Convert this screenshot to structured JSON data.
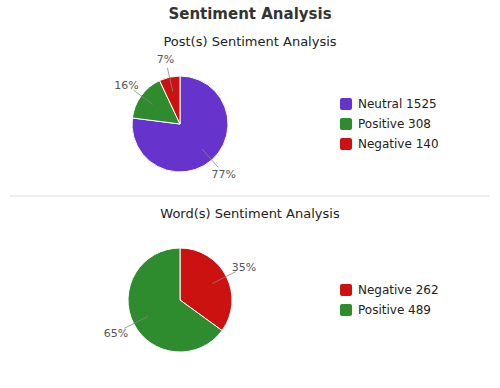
{
  "title": "Sentiment Analysis",
  "chart_data": [
    {
      "type": "pie",
      "title": "Post(s) Sentiment Analysis",
      "categories": [
        "Neutral 1525",
        "Positive 308",
        "Negative 140"
      ],
      "values": [
        77,
        16,
        7
      ],
      "value_labels": [
        "77%",
        "16%",
        "7%"
      ],
      "colors": [
        "#6633CC",
        "#2E8B2E",
        "#CC1111"
      ],
      "data_labels": true,
      "legend": "right"
    },
    {
      "type": "pie",
      "title": "Word(s) Sentiment Analysis",
      "categories": [
        "Negative 262",
        "Positive 489"
      ],
      "values": [
        35,
        65
      ],
      "value_labels": [
        "35%",
        "65%"
      ],
      "colors": [
        "#CC1111",
        "#2E8B2E"
      ],
      "data_labels": true,
      "legend": "right"
    }
  ]
}
